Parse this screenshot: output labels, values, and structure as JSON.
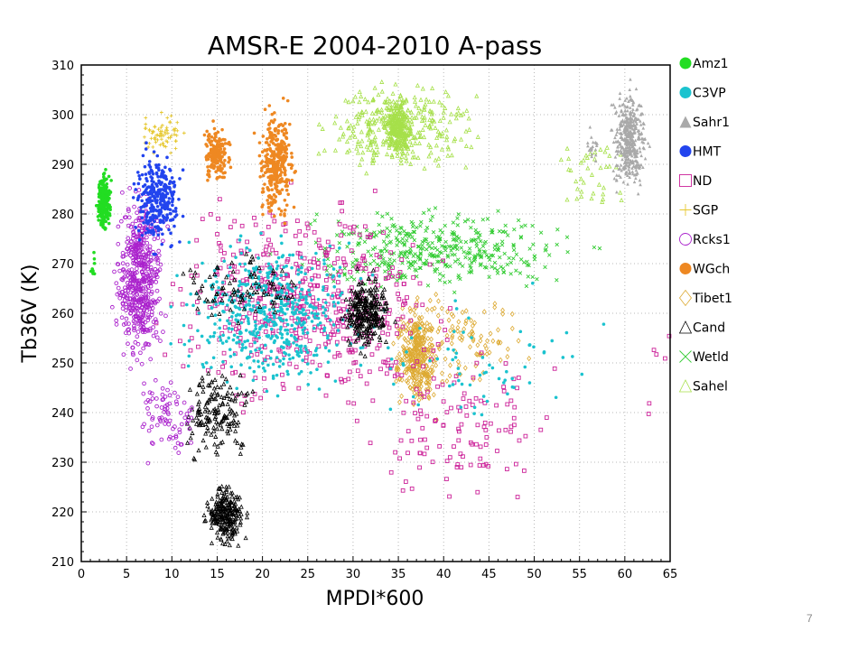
{
  "slide_number": "7",
  "chart_data": {
    "type": "scatter",
    "title": "AMSR-E 2004-2010 A-pass",
    "xlabel": "MPDI*600",
    "ylabel": "Tb36V (K)",
    "xlim": [
      0,
      65
    ],
    "ylim": [
      210,
      310
    ],
    "x_ticks": [
      0,
      5,
      10,
      15,
      20,
      25,
      30,
      35,
      40,
      45,
      50,
      55,
      60,
      65
    ],
    "y_ticks": [
      210,
      220,
      230,
      240,
      250,
      260,
      270,
      280,
      290,
      300,
      310
    ],
    "grid": true,
    "legend_position": "right",
    "series": [
      {
        "name": "Amz1",
        "marker": "filled-circle",
        "color": "#22dd22",
        "clusters": [
          {
            "x": [
              1.5,
              3.5
            ],
            "y": [
              275,
              290
            ],
            "n": 260
          },
          {
            "x": [
              1.0,
              1.6
            ],
            "y": [
              265,
              275
            ],
            "n": 10
          }
        ]
      },
      {
        "name": "C3VP",
        "marker": "filled-circle",
        "color": "#1bc3cf",
        "clusters": [
          {
            "x": [
              8,
              34
            ],
            "y": [
              240,
              280
            ],
            "n": 520
          },
          {
            "x": [
              25,
              63
            ],
            "y": [
              230,
              270
            ],
            "n": 70
          }
        ]
      },
      {
        "name": "Sahr1",
        "marker": "filled-triangle",
        "color": "#a9a9a9",
        "clusters": [
          {
            "x": [
              58,
              63
            ],
            "y": [
              282,
              308
            ],
            "n": 420
          },
          {
            "x": [
              55,
              58
            ],
            "y": [
              288,
              298
            ],
            "n": 20
          }
        ]
      },
      {
        "name": "HMT",
        "marker": "filled-circle",
        "color": "#2244ee",
        "clusters": [
          {
            "x": [
              5,
              12
            ],
            "y": [
              270,
              296
            ],
            "n": 300
          }
        ]
      },
      {
        "name": "ND",
        "marker": "open-square",
        "color": "#cc2299",
        "clusters": [
          {
            "x": [
              5,
              45
            ],
            "y": [
              235,
              290
            ],
            "n": 560
          },
          {
            "x": [
              28,
              56
            ],
            "y": [
              215,
              260
            ],
            "n": 120
          },
          {
            "x": [
              60,
              68
            ],
            "y": [
              236,
              262
            ],
            "n": 6
          }
        ]
      },
      {
        "name": "SGP",
        "marker": "plus",
        "color": "#e6c830",
        "clusters": [
          {
            "x": [
              5,
              13
            ],
            "y": [
              290,
              302
            ],
            "n": 70
          }
        ]
      },
      {
        "name": "Rcks1",
        "marker": "open-circle",
        "color": "#aa22cc",
        "clusters": [
          {
            "x": [
              3,
              10
            ],
            "y": [
              245,
              290
            ],
            "n": 520
          },
          {
            "x": [
              5,
              14
            ],
            "y": [
              228,
              250
            ],
            "n": 80
          }
        ]
      },
      {
        "name": "WGch",
        "marker": "filled-circle",
        "color": "#ee8822",
        "clusters": [
          {
            "x": [
              13,
              17
            ],
            "y": [
              284,
              300
            ],
            "n": 170
          },
          {
            "x": [
              19,
              24
            ],
            "y": [
              276,
              304
            ],
            "n": 330
          }
        ]
      },
      {
        "name": "Tibet1",
        "marker": "open-diamond",
        "color": "#ddaa33",
        "clusters": [
          {
            "x": [
              34,
              40
            ],
            "y": [
              238,
              265
            ],
            "n": 330
          },
          {
            "x": [
              32,
              52
            ],
            "y": [
              240,
              270
            ],
            "n": 110
          }
        ]
      },
      {
        "name": "Cand",
        "marker": "open-triangle",
        "color": "#000000",
        "clusters": [
          {
            "x": [
              13,
              19
            ],
            "y": [
              211,
              228
            ],
            "n": 240
          },
          {
            "x": [
              10,
              20
            ],
            "y": [
              228,
              252
            ],
            "n": 160
          },
          {
            "x": [
              28,
              35
            ],
            "y": [
              250,
              270
            ],
            "n": 260
          },
          {
            "x": [
              8,
              28
            ],
            "y": [
              255,
              275
            ],
            "n": 90
          }
        ]
      },
      {
        "name": "Wetld",
        "marker": "cross",
        "color": "#33cc33",
        "clusters": [
          {
            "x": [
              18,
              60
            ],
            "y": [
              262,
              284
            ],
            "n": 420
          }
        ]
      },
      {
        "name": "Sahel",
        "marker": "open-triangle",
        "color": "#a6e04a",
        "clusters": [
          {
            "x": [
              33,
              37
            ],
            "y": [
              290,
              304
            ],
            "n": 230
          },
          {
            "x": [
              24,
              46
            ],
            "y": [
              285,
              310
            ],
            "n": 320
          },
          {
            "x": [
              50,
              63
            ],
            "y": [
              275,
              300
            ],
            "n": 40
          }
        ]
      }
    ]
  }
}
